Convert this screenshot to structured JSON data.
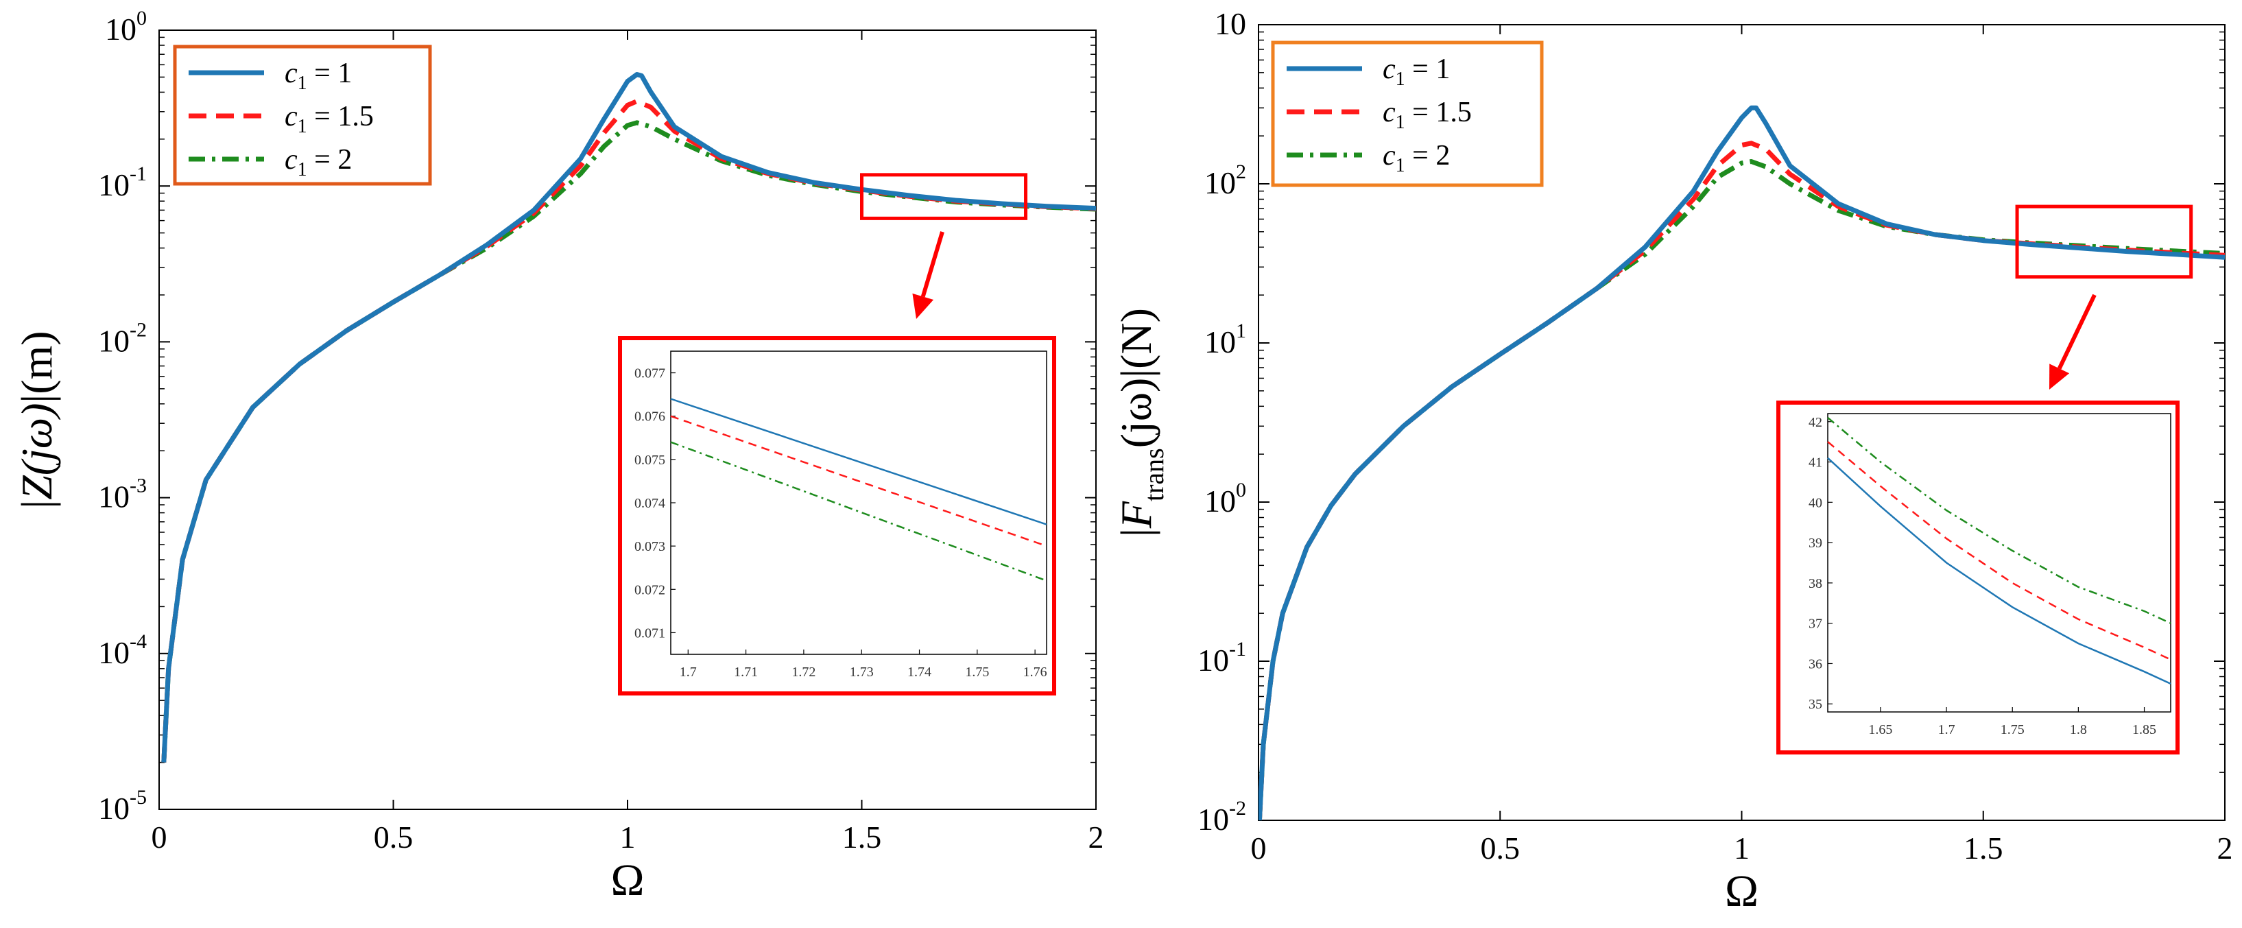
{
  "chart_data": [
    {
      "type": "line",
      "xscale": "linear",
      "yscale": "log",
      "xlim": [
        0,
        2
      ],
      "ylim": [
        1e-05,
        1
      ],
      "x_ticks": [
        0,
        0.5,
        1,
        1.5,
        2
      ],
      "x_tick_labels": [
        "0",
        "0.5",
        "1",
        "1.5",
        "2"
      ],
      "y_ticks": [
        1e-05,
        0.0001,
        0.001,
        0.01,
        0.1,
        1
      ],
      "y_tick_labels": [
        {
          "base": "10",
          "exp": "-5"
        },
        {
          "base": "10",
          "exp": "-4"
        },
        {
          "base": "10",
          "exp": "-3"
        },
        {
          "base": "10",
          "exp": "-2"
        },
        {
          "base": "10",
          "exp": "-1"
        },
        {
          "base": "10",
          "exp": "0"
        }
      ],
      "xlabel": "Ω",
      "ylabel": {
        "prefix": "|",
        "main": "Z(jω)",
        "suffix": "|(m)"
      },
      "legend_position": "top-left",
      "series": [
        {
          "name": "c1 = 1",
          "legend": {
            "sym": "c",
            "sub": "1",
            "rhs": " = 1"
          },
          "color": "#1f77b4",
          "dash": "solid",
          "x": [
            0.01,
            0.02,
            0.05,
            0.1,
            0.2,
            0.3,
            0.4,
            0.5,
            0.6,
            0.7,
            0.8,
            0.9,
            0.95,
            1.0,
            1.02,
            1.03,
            1.05,
            1.1,
            1.2,
            1.3,
            1.4,
            1.5,
            1.6,
            1.7,
            1.8,
            1.9,
            2.0
          ],
          "y": [
            2e-05,
            8e-05,
            0.0004,
            0.0013,
            0.0038,
            0.0072,
            0.0118,
            0.018,
            0.027,
            0.042,
            0.07,
            0.15,
            0.27,
            0.47,
            0.52,
            0.51,
            0.4,
            0.24,
            0.155,
            0.122,
            0.105,
            0.095,
            0.087,
            0.081,
            0.077,
            0.074,
            0.072
          ]
        },
        {
          "name": "c1 = 1.5",
          "legend": {
            "sym": "c",
            "sub": "1",
            "rhs": " = 1.5"
          },
          "color": "#ff1a1a",
          "dash": "dashed",
          "x": [
            0.01,
            0.02,
            0.05,
            0.1,
            0.2,
            0.3,
            0.4,
            0.5,
            0.6,
            0.7,
            0.8,
            0.9,
            0.95,
            1.0,
            1.02,
            1.05,
            1.1,
            1.2,
            1.3,
            1.4,
            1.5,
            1.6,
            1.7,
            1.8,
            1.9,
            2.0
          ],
          "y": [
            2e-05,
            8e-05,
            0.0004,
            0.0013,
            0.0038,
            0.0072,
            0.0118,
            0.018,
            0.027,
            0.041,
            0.067,
            0.135,
            0.22,
            0.33,
            0.35,
            0.32,
            0.225,
            0.15,
            0.12,
            0.104,
            0.094,
            0.086,
            0.08,
            0.0765,
            0.0735,
            0.0715
          ]
        },
        {
          "name": "c1 = 2",
          "legend": {
            "sym": "c",
            "sub": "1",
            "rhs": " = 2"
          },
          "color": "#1e8c1e",
          "dash": "dashdot",
          "x": [
            0.01,
            0.02,
            0.05,
            0.1,
            0.2,
            0.3,
            0.4,
            0.5,
            0.6,
            0.7,
            0.8,
            0.9,
            0.95,
            1.0,
            1.02,
            1.05,
            1.1,
            1.2,
            1.3,
            1.4,
            1.5,
            1.6,
            1.7,
            1.8,
            1.9,
            2.0
          ],
          "y": [
            2e-05,
            8e-05,
            0.0004,
            0.0013,
            0.0038,
            0.0072,
            0.0118,
            0.018,
            0.027,
            0.04,
            0.064,
            0.12,
            0.18,
            0.245,
            0.255,
            0.24,
            0.2,
            0.145,
            0.117,
            0.102,
            0.092,
            0.085,
            0.079,
            0.0755,
            0.073,
            0.071
          ]
        }
      ],
      "zoom_box": {
        "xlim": [
          1.5,
          1.85
        ],
        "ylim": [
          0.062,
          0.118
        ]
      },
      "inset": {
        "xlim": [
          1.697,
          1.762
        ],
        "ylim": [
          0.0705,
          0.0775
        ],
        "x_tick_labels": [
          "1.7",
          "1.71",
          "1.72",
          "1.73",
          "1.74",
          "1.75",
          "1.76"
        ],
        "x_ticks": [
          1.7,
          1.71,
          1.72,
          1.73,
          1.74,
          1.75,
          1.76
        ],
        "y_tick_labels": [
          "0.071",
          "0.072",
          "0.073",
          "0.074",
          "0.075",
          "0.076",
          "0.077"
        ],
        "y_ticks": [
          0.071,
          0.072,
          0.073,
          0.074,
          0.075,
          0.076,
          0.077
        ],
        "series": [
          {
            "name": "c1 = 1",
            "x": [
              1.697,
              1.762
            ],
            "y": [
              0.0764,
              0.0735
            ]
          },
          {
            "name": "c1 = 1.5",
            "x": [
              1.697,
              1.762
            ],
            "y": [
              0.076,
              0.073
            ]
          },
          {
            "name": "c1 = 2",
            "x": [
              1.697,
              1.762
            ],
            "y": [
              0.0754,
              0.0722
            ]
          }
        ]
      }
    },
    {
      "type": "line",
      "xscale": "linear",
      "yscale": "log",
      "xlim": [
        0,
        2
      ],
      "ylim": [
        0.01,
        1000.0
      ],
      "x_ticks": [
        0,
        0.5,
        1,
        1.5,
        2
      ],
      "x_tick_labels": [
        "0",
        "0.5",
        "1",
        "1.5",
        "2"
      ],
      "y_ticks": [
        0.01,
        0.1,
        1,
        10,
        100,
        1000
      ],
      "y_tick_labels": [
        {
          "base": "10",
          "exp": "-2"
        },
        {
          "base": "10",
          "exp": "-1"
        },
        {
          "base": "10",
          "exp": "0"
        },
        {
          "base": "10",
          "exp": "1"
        },
        {
          "base": "10",
          "exp": "2"
        },
        {
          "base": "10",
          "exp": ""
        }
      ],
      "xlabel": "Ω",
      "ylabel": {
        "prefix": "|",
        "main": "F",
        "sub": "trans",
        "after": "(jω)",
        "suffix": "|(N)"
      },
      "legend_position": "top-left",
      "series": [
        {
          "name": "c1 = 1",
          "legend": {
            "sym": "c",
            "sub": "1",
            "rhs": " = 1"
          },
          "color": "#1f77b4",
          "dash": "solid",
          "x": [
            0.002,
            0.01,
            0.03,
            0.05,
            0.1,
            0.15,
            0.2,
            0.3,
            0.4,
            0.5,
            0.6,
            0.7,
            0.8,
            0.9,
            0.95,
            1.0,
            1.02,
            1.03,
            1.05,
            1.1,
            1.2,
            1.3,
            1.4,
            1.5,
            1.6,
            1.7,
            1.8,
            1.9,
            2.0
          ],
          "y": [
            0.01,
            0.03,
            0.1,
            0.2,
            0.52,
            0.95,
            1.5,
            3.0,
            5.3,
            8.5,
            13.5,
            22,
            40,
            90,
            160,
            260,
            300,
            300,
            240,
            130,
            75,
            56,
            48,
            44,
            41.5,
            39.5,
            37.5,
            36,
            34.5
          ]
        },
        {
          "name": "c1 = 1.5",
          "legend": {
            "sym": "c",
            "sub": "1",
            "rhs": " = 1.5"
          },
          "color": "#ff1a1a",
          "dash": "dashed",
          "x": [
            0.002,
            0.01,
            0.03,
            0.05,
            0.1,
            0.15,
            0.2,
            0.3,
            0.4,
            0.5,
            0.6,
            0.7,
            0.8,
            0.9,
            0.95,
            1.0,
            1.02,
            1.05,
            1.1,
            1.2,
            1.3,
            1.4,
            1.5,
            1.6,
            1.7,
            1.8,
            1.9,
            2.0
          ],
          "y": [
            0.01,
            0.03,
            0.1,
            0.2,
            0.52,
            0.95,
            1.5,
            3.0,
            5.3,
            8.5,
            13.5,
            22,
            38,
            80,
            130,
            175,
            180,
            165,
            115,
            72,
            55,
            48,
            44,
            42,
            40,
            38.3,
            36.8,
            35.5
          ]
        },
        {
          "name": "c1 = 2",
          "legend": {
            "sym": "c",
            "sub": "1",
            "rhs": " = 2"
          },
          "color": "#1e8c1e",
          "dash": "dashdot",
          "x": [
            0.002,
            0.01,
            0.03,
            0.05,
            0.1,
            0.15,
            0.2,
            0.3,
            0.4,
            0.5,
            0.6,
            0.7,
            0.8,
            0.9,
            0.95,
            1.0,
            1.02,
            1.05,
            1.1,
            1.2,
            1.3,
            1.4,
            1.5,
            1.6,
            1.7,
            1.8,
            1.9,
            2.0
          ],
          "y": [
            0.01,
            0.03,
            0.1,
            0.2,
            0.52,
            0.95,
            1.5,
            3.0,
            5.3,
            8.5,
            13.5,
            22,
            36,
            72,
            110,
            135,
            138,
            128,
            100,
            68,
            54,
            48,
            44.5,
            42.5,
            40.8,
            39.2,
            37.8,
            36.5
          ]
        }
      ],
      "zoom_box": {
        "xlim": [
          1.57,
          1.93
        ],
        "ylim": [
          26,
          72
        ]
      },
      "inset": {
        "xlim": [
          1.61,
          1.87
        ],
        "ylim": [
          34.8,
          42.2
        ],
        "x_tick_labels": [
          "1.65",
          "1.7",
          "1.75",
          "1.8",
          "1.85"
        ],
        "x_ticks": [
          1.65,
          1.7,
          1.75,
          1.8,
          1.85
        ],
        "y_tick_labels": [
          "35",
          "36",
          "37",
          "38",
          "39",
          "40",
          "41",
          "42"
        ],
        "y_ticks": [
          35,
          36,
          37,
          38,
          39,
          40,
          41,
          42
        ],
        "series": [
          {
            "name": "c1 = 1",
            "x": [
              1.61,
              1.65,
              1.7,
              1.75,
              1.8,
              1.85,
              1.87
            ],
            "y": [
              41.1,
              39.9,
              38.5,
              37.4,
              36.5,
              35.8,
              35.5
            ]
          },
          {
            "name": "c1 = 1.5",
            "x": [
              1.61,
              1.65,
              1.7,
              1.75,
              1.8,
              1.85,
              1.87
            ],
            "y": [
              41.5,
              40.4,
              39.1,
              38.0,
              37.1,
              36.4,
              36.1
            ]
          },
          {
            "name": "c1 = 2",
            "x": [
              1.61,
              1.65,
              1.7,
              1.75,
              1.8,
              1.85,
              1.87
            ],
            "y": [
              42.1,
              41.0,
              39.8,
              38.8,
              37.9,
              37.3,
              37.0
            ]
          }
        ]
      }
    }
  ]
}
